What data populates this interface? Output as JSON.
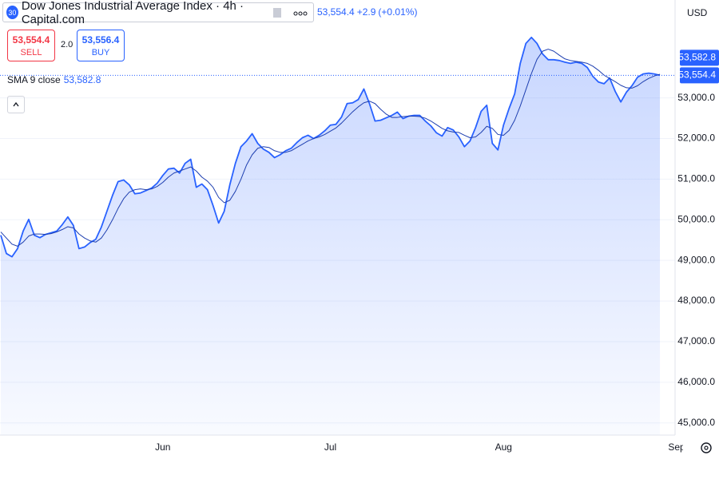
{
  "header": {
    "badge": "30",
    "title": "Dow Jones Industrial Average Index · 4h · Capital.com",
    "last": "53,554.4",
    "change": "+2.9",
    "change_pct": "(+0.01%)"
  },
  "trade": {
    "sell_price": "53,554.4",
    "sell_label": "SELL",
    "spread": "2.0",
    "buy_price": "53,556.4",
    "buy_label": "BUY"
  },
  "currency": "USD",
  "chart_data": {
    "type": "area",
    "categories": [
      null,
      null,
      null,
      null,
      null,
      null,
      null,
      null,
      null,
      null,
      null,
      null,
      null,
      null,
      null,
      null,
      null,
      null,
      null,
      null,
      null,
      null,
      null,
      null,
      null,
      null,
      null,
      null,
      null,
      "Jun",
      null,
      null,
      null,
      null,
      null,
      null,
      null,
      null,
      null,
      null,
      null,
      null,
      null,
      null,
      null,
      null,
      null,
      null,
      null,
      null,
      null,
      null,
      null,
      null,
      null,
      null,
      null,
      null,
      null,
      "Jul",
      null,
      null,
      null,
      null,
      null,
      null,
      null,
      null,
      null,
      null,
      null,
      null,
      null,
      null,
      null,
      null,
      null,
      null,
      null,
      null,
      null,
      null,
      null,
      null,
      null,
      null,
      null,
      null,
      null,
      null,
      "Aug",
      null,
      null,
      null,
      null,
      null,
      null,
      null,
      null,
      null,
      null,
      null,
      null,
      null,
      null,
      null,
      null,
      null,
      null,
      null,
      null,
      null,
      null,
      null,
      null,
      null,
      null,
      null,
      null,
      null,
      null,
      "Sep"
    ],
    "series": [
      {
        "color": "#2962ff",
        "area": true,
        "values": [
          49620,
          49170,
          49090,
          49290,
          49720,
          50010,
          49620,
          49560,
          49640,
          49680,
          49720,
          49880,
          50070,
          49860,
          49290,
          49330,
          49440,
          49520,
          49820,
          50210,
          50600,
          50940,
          50980,
          50860,
          50640,
          50660,
          50720,
          50780,
          50900,
          51090,
          51250,
          51270,
          51150,
          51390,
          51490,
          50800,
          50880,
          50740,
          50350,
          49920,
          50210,
          50860,
          51390,
          51800,
          51940,
          52120,
          51880,
          51740,
          51660,
          51530,
          51600,
          51700,
          51760,
          51900,
          52020,
          52080,
          52000,
          52080,
          52190,
          52330,
          52350,
          52530,
          52860,
          52880,
          52960,
          53220,
          52860,
          52430,
          52450,
          52510,
          52570,
          52650,
          52490,
          52550,
          52570,
          52570,
          52430,
          52310,
          52140,
          52060,
          52270,
          52210,
          52040,
          51800,
          51940,
          52270,
          52670,
          52820,
          51880,
          51720,
          52330,
          52740,
          53100,
          53850,
          54340,
          54490,
          54340,
          54080,
          53940,
          53940,
          53920,
          53880,
          53850,
          53880,
          53850,
          53750,
          53530,
          53390,
          53350,
          53490,
          53160,
          52900,
          53140,
          53300,
          53510,
          53590,
          53610,
          53590,
          53554.4,
          null,
          null,
          null
        ]
      },
      {
        "name": "SMA 9 close",
        "legend_value": "53,582.8",
        "color": "#1e3fb0",
        "area": false,
        "values": [
          49700,
          49550,
          49400,
          49350,
          49450,
          49600,
          49650,
          49650,
          49640,
          49660,
          49700,
          49760,
          49830,
          49800,
          49650,
          49550,
          49480,
          49450,
          49550,
          49750,
          50000,
          50280,
          50520,
          50680,
          50740,
          50760,
          50740,
          50760,
          50820,
          50920,
          51050,
          51150,
          51200,
          51250,
          51300,
          51200,
          51050,
          50950,
          50800,
          50550,
          50420,
          50480,
          50700,
          51000,
          51350,
          51600,
          51760,
          51800,
          51780,
          51700,
          51660,
          51660,
          51700,
          51780,
          51860,
          51940,
          52000,
          52040,
          52100,
          52180,
          52260,
          52380,
          52520,
          52660,
          52780,
          52880,
          52920,
          52860,
          52720,
          52600,
          52520,
          52520,
          52540,
          52550,
          52550,
          52540,
          52500,
          52430,
          52340,
          52250,
          52190,
          52160,
          52150,
          52080,
          52020,
          52040,
          52150,
          52300,
          52250,
          52100,
          52080,
          52200,
          52450,
          52800,
          53200,
          53600,
          53950,
          54150,
          54200,
          54150,
          54050,
          53960,
          53920,
          53900,
          53880,
          53850,
          53780,
          53680,
          53560,
          53480,
          53400,
          53310,
          53250,
          53240,
          53300,
          53400,
          53480,
          53540,
          53582.8,
          null,
          null,
          null
        ]
      }
    ],
    "price_labels": [
      {
        "value": 53582.8,
        "label": "53,582.8"
      },
      {
        "value": 53554.4,
        "label": "53,554.4"
      }
    ],
    "price_label_color": "#2962ff",
    "ylim": [
      44700,
      55410
    ],
    "yticks": [
      {
        "value": 45000,
        "label": "45,000.0"
      },
      {
        "value": 46000,
        "label": "46,000.0"
      },
      {
        "value": 47000,
        "label": "47,000.0"
      },
      {
        "value": 48000,
        "label": "48,000.0"
      },
      {
        "value": 49000,
        "label": "49,000.0"
      },
      {
        "value": 50000,
        "label": "50,000.0"
      },
      {
        "value": 51000,
        "label": "51,000.0"
      },
      {
        "value": 52000,
        "label": "52,000.0"
      },
      {
        "value": 53000,
        "label": "53,000.0"
      }
    ],
    "grid": true
  }
}
